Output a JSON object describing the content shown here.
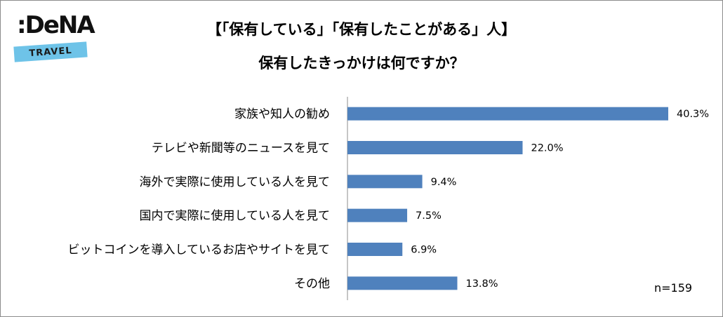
{
  "logo": {
    "main": ":DeNA",
    "band": "TRAVEL"
  },
  "chart_data": {
    "type": "bar",
    "orientation": "horizontal",
    "title_line1": "【「保有している」「保有したことがある」人】",
    "title_line2": "保有したきっかけは何ですか？",
    "categories": [
      "家族や知人の勧め",
      "テレビや新聞等のニュースを見て",
      "海外で実際に使用している人を見て",
      "国内で実際に使用している人を見て",
      "ビットコインを導入しているお店やサイトを見て",
      "その他"
    ],
    "values": [
      40.3,
      22.0,
      9.4,
      7.5,
      6.9,
      13.8
    ],
    "value_labels": [
      "40.3%",
      "22.0%",
      "9.4%",
      "7.5%",
      "6.9%",
      "13.8%"
    ],
    "unit": "%",
    "bar_color": "#4f81bd",
    "xlim": [
      0,
      40.3
    ],
    "grid": false,
    "annotation": "n=159"
  }
}
